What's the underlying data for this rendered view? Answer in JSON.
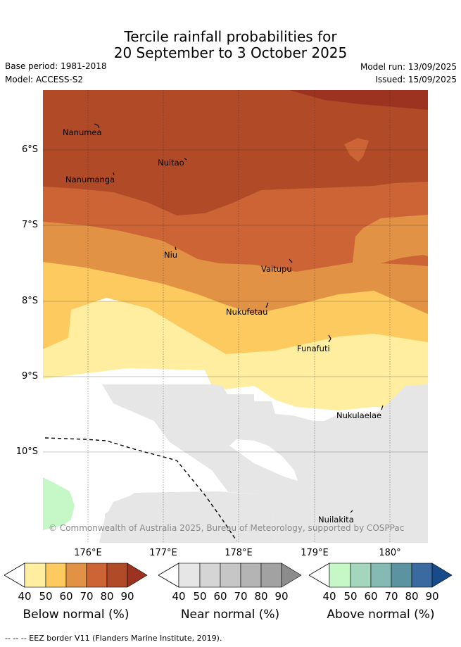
{
  "title": {
    "line1": "Tercile rainfall probabilities for",
    "line2": "20 September to 3 October 2025"
  },
  "meta": {
    "base_period": "Base period: 1981-2018",
    "model": "Model: ACCESS-S2",
    "model_run": "Model run: 13/09/2025",
    "issued": "Issued: 15/09/2025"
  },
  "map": {
    "lat_labels": [
      "6°S",
      "7°S",
      "8°S",
      "9°S",
      "10°S"
    ],
    "lon_labels": [
      "176°E",
      "177°E",
      "178°E",
      "179°E",
      "180°"
    ],
    "places": [
      "Nanumea",
      "Nuitao",
      "Nanumanga",
      "Niu",
      "Vaitupu",
      "Nukufetau",
      "Funafuti",
      "Nukulaelae",
      "Nuilakita"
    ],
    "credit": "© Commonwealth of Australia 2025, Bureau of Meteorology, supported by COSPPac"
  },
  "legend": {
    "ticks": [
      "40",
      "50",
      "60",
      "70",
      "80",
      "90"
    ],
    "below": {
      "label": "Below normal (%)",
      "colors": [
        "#ffeea0",
        "#fdca60",
        "#e19245",
        "#cd6435",
        "#b04a27",
        "#9b3320"
      ]
    },
    "near": {
      "label": "Near normal (%)",
      "colors": [
        "#e6e6e6",
        "#d5d5d5",
        "#c6c6c6",
        "#b4b4b4",
        "#a2a2a2",
        "#8c8c8c"
      ]
    },
    "above": {
      "label": "Above normal (%)",
      "colors": [
        "#c6f7c6",
        "#a4d6bd",
        "#84b9b4",
        "#5b93a0",
        "#3b6aa0",
        "#174b8a"
      ]
    }
  },
  "footnote": "-- -- -- EEZ border V11 (Flanders Marine Institute, 2019)."
}
